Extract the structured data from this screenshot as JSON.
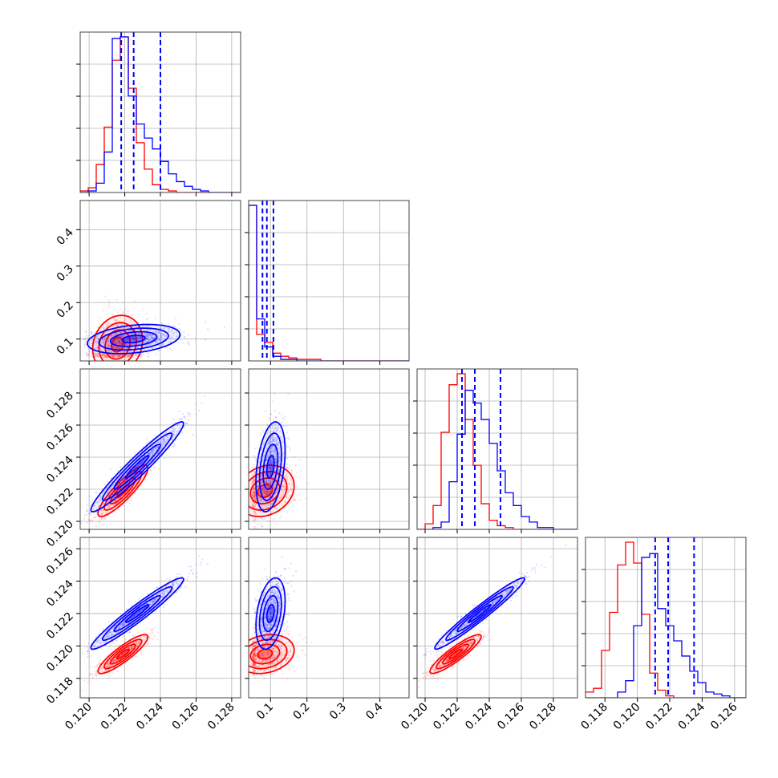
{
  "chart_data": {
    "type": "corner",
    "colors": {
      "red": "#ff0000",
      "blue": "#0000ff",
      "grid": "#b0b0b0"
    },
    "series": [
      {
        "key": "red",
        "color": "#ff0000"
      },
      {
        "key": "blue",
        "color": "#0000ff"
      }
    ],
    "params": [
      {
        "range": [
          0.1195,
          0.1285
        ],
        "ticks": [
          "0.120",
          "0.122",
          "0.124",
          "0.126",
          "0.128"
        ],
        "tick_values": [
          0.12,
          0.122,
          0.124,
          0.126,
          0.128
        ]
      },
      {
        "range": [
          0.04,
          0.48
        ],
        "ticks": [
          "0.1",
          "0.2",
          "0.3",
          "0.4"
        ],
        "tick_values": [
          0.1,
          0.2,
          0.3,
          0.4
        ]
      },
      {
        "range": [
          0.1195,
          0.1295
        ],
        "ticks": [
          "0.120",
          "0.122",
          "0.124",
          "0.126",
          "0.128"
        ],
        "tick_values": [
          0.12,
          0.122,
          0.124,
          0.126,
          0.128
        ]
      },
      {
        "range": [
          0.1168,
          0.1267
        ],
        "ticks": [
          "0.118",
          "0.120",
          "0.122",
          "0.124",
          "0.126"
        ],
        "tick_values": [
          0.118,
          0.12,
          0.122,
          0.124,
          0.126
        ]
      }
    ],
    "diag_hist": [
      {
        "edges_range": [
          0.1195,
          0.1285
        ],
        "nbins": 20,
        "red": [
          1,
          3,
          18,
          42,
          85,
          100,
          67,
          32,
          15,
          5,
          2,
          1,
          0,
          0,
          0,
          0,
          0,
          0,
          0,
          0
        ],
        "blue": [
          0,
          1,
          6,
          26,
          99,
          100,
          62,
          44,
          35,
          28,
          20,
          12,
          7,
          4,
          2,
          1,
          0,
          0,
          0,
          0
        ],
        "quantiles_blue": [
          0.1218,
          0.1225,
          0.124
        ]
      },
      {
        "edges_range": [
          0.04,
          0.48
        ],
        "nbins": 20,
        "red": [
          100,
          17,
          12,
          5,
          3,
          2,
          1,
          1,
          1,
          0,
          0,
          0,
          0,
          0,
          0,
          0,
          0,
          0,
          0,
          0
        ],
        "blue": [
          100,
          27,
          9,
          3,
          1,
          1,
          0,
          0,
          0,
          0,
          0,
          0,
          0,
          0,
          0,
          0,
          0,
          0,
          0,
          0
        ],
        "quantiles_blue": [
          0.078,
          0.09,
          0.108
        ]
      },
      {
        "edges_range": [
          0.1195,
          0.1295
        ],
        "nbins": 20,
        "red": [
          0,
          3,
          13,
          53,
          79,
          85,
          60,
          35,
          14,
          5,
          2,
          1,
          0,
          0,
          0,
          0,
          0,
          0,
          0,
          0
        ],
        "blue": [
          0,
          0,
          1,
          4,
          26,
          52,
          76,
          69,
          60,
          47,
          32,
          20,
          13,
          7,
          4,
          1,
          1,
          0,
          0,
          0
        ],
        "quantiles_blue": [
          0.1223,
          0.1231,
          0.1247
        ]
      },
      {
        "edges_range": [
          0.1168,
          0.1267
        ],
        "nbins": 20,
        "red": [
          3,
          5,
          25,
          45,
          70,
          82,
          71,
          44,
          13,
          4,
          1,
          0,
          0,
          0,
          0,
          0,
          0,
          0,
          0,
          0
        ],
        "blue": [
          0,
          0,
          0,
          0,
          3,
          9,
          38,
          74,
          76,
          47,
          38,
          30,
          22,
          14,
          8,
          3,
          2,
          1,
          0,
          0
        ],
        "quantiles_blue": [
          0.1211,
          0.1219,
          0.1235
        ]
      }
    ],
    "pairs": [
      {
        "row": 1,
        "col": 0,
        "red": {
          "mean": [
            0.1216,
            0.085
          ],
          "sd": [
            0.0007,
            0.04
          ],
          "rho": 0.15
        },
        "blue": {
          "mean": [
            0.1225,
            0.1
          ],
          "sd": [
            0.0013,
            0.02
          ],
          "rho": 0.3
        }
      },
      {
        "row": 2,
        "col": 0,
        "red": {
          "mean": [
            0.1219,
            0.1219
          ],
          "sd": [
            0.0007,
            0.0008
          ],
          "rho": 0.88
        },
        "blue": {
          "mean": [
            0.1227,
            0.1234
          ],
          "sd": [
            0.0013,
            0.0014
          ],
          "rho": 0.96
        }
      },
      {
        "row": 2,
        "col": 1,
        "red": {
          "mean": [
            0.085,
            0.1219
          ],
          "sd": [
            0.04,
            0.0008
          ],
          "rho": 0.2
        },
        "blue": {
          "mean": [
            0.1,
            0.1234
          ],
          "sd": [
            0.02,
            0.0014
          ],
          "rho": 0.35
        }
      },
      {
        "row": 3,
        "col": 0,
        "red": {
          "mean": [
            0.1219,
            0.1195
          ],
          "sd": [
            0.0007,
            0.0006
          ],
          "rho": 0.88
        },
        "blue": {
          "mean": [
            0.1227,
            0.122
          ],
          "sd": [
            0.0013,
            0.0011
          ],
          "rho": 0.96
        }
      },
      {
        "row": 3,
        "col": 1,
        "red": {
          "mean": [
            0.085,
            0.1195
          ],
          "sd": [
            0.04,
            0.0006
          ],
          "rho": 0.2
        },
        "blue": {
          "mean": [
            0.1,
            0.122
          ],
          "sd": [
            0.02,
            0.0011
          ],
          "rho": 0.35
        }
      },
      {
        "row": 3,
        "col": 2,
        "red": {
          "mean": [
            0.1219,
            0.1195
          ],
          "sd": [
            0.0008,
            0.0006
          ],
          "rho": 0.9
        },
        "blue": {
          "mean": [
            0.1234,
            0.122
          ],
          "sd": [
            0.0014,
            0.0011
          ],
          "rho": 0.97
        }
      }
    ],
    "grid": true
  }
}
